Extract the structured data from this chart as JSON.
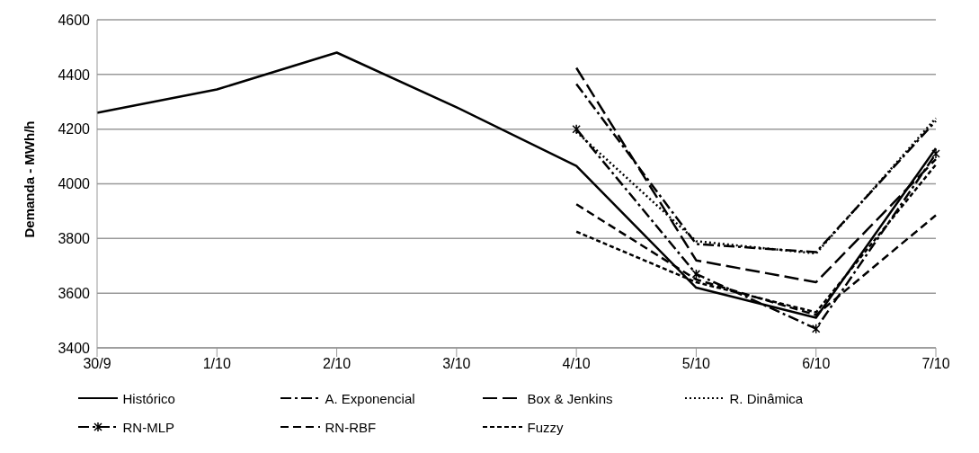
{
  "chart_data": {
    "type": "line",
    "ylabel": "Demanda - MWh/h",
    "categories": [
      "30/9",
      "1/10",
      "2/10",
      "3/10",
      "4/10",
      "5/10",
      "6/10",
      "7/10"
    ],
    "ylim": [
      3400,
      4600
    ],
    "yticks": [
      3400,
      3600,
      3800,
      4000,
      4200,
      4400,
      4600
    ],
    "grid": "y",
    "legend": "bottom",
    "marker": "none",
    "series": [
      {
        "name": "Histórico",
        "color": "#000000",
        "line_style": "solid",
        "values": [
          4260,
          4345,
          4480,
          4280,
          4065,
          3620,
          3510,
          4130
        ]
      },
      {
        "name": "A. Exponencial",
        "color": "#000000",
        "line_style": "dashdot",
        "values": [
          null,
          null,
          null,
          null,
          4365,
          3780,
          3750,
          4230
        ]
      },
      {
        "name": "Box & Jenkins",
        "color": "#000000",
        "line_style": "longdash",
        "values": [
          null,
          null,
          null,
          null,
          4424,
          3720,
          3640,
          4090
        ]
      },
      {
        "name": "R. Dinâmica",
        "color": "#000000",
        "line_style": "dotted",
        "values": [
          null,
          null,
          null,
          null,
          4190,
          3790,
          3745,
          4240
        ]
      },
      {
        "name": "RN-MLP",
        "color": "#000000",
        "line_style": "dashdot",
        "marker": "cross",
        "values": [
          null,
          null,
          null,
          null,
          4200,
          3670,
          3470,
          4110
        ]
      },
      {
        "name": "RN-RBF",
        "color": "#000000",
        "line_style": "dashed",
        "values": [
          null,
          null,
          null,
          null,
          3925,
          3650,
          3520,
          3885
        ]
      },
      {
        "name": "Fuzzy",
        "color": "#000000",
        "line_style": "shortdash",
        "values": [
          null,
          null,
          null,
          null,
          3825,
          3640,
          3530,
          4070
        ]
      }
    ]
  }
}
